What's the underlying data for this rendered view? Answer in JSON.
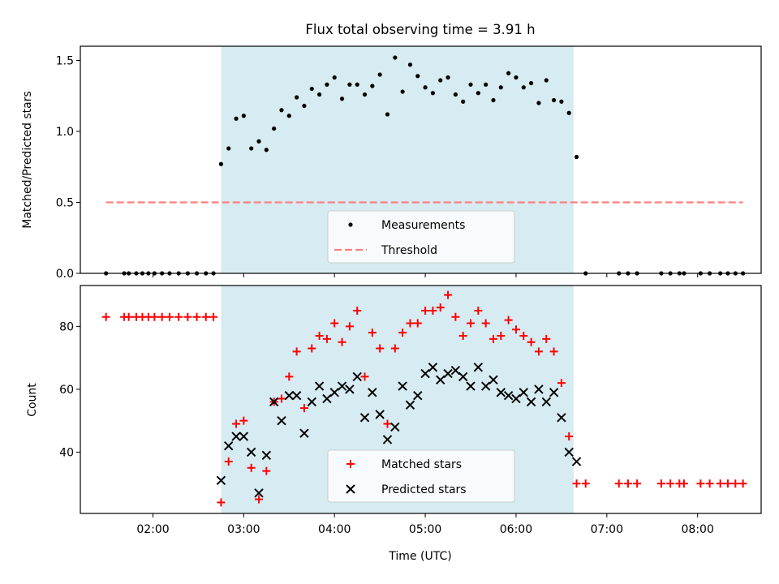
{
  "chart_data": [
    {
      "type": "scatter",
      "title": "Flux total observing time = 3.91 h",
      "xlabel": "",
      "ylabel": "Matched/Predicted stars",
      "xlim": [
        "01:12",
        "08:42"
      ],
      "ylim": [
        0,
        1.6
      ],
      "y_ticks": [
        "0.0",
        "0.5",
        "1.0",
        "1.5"
      ],
      "x_tick_values": [
        "02:00",
        "03:00",
        "04:00",
        "05:00",
        "06:00",
        "07:00",
        "08:00"
      ],
      "shaded_region": {
        "x": [
          "02:45",
          "06:38"
        ],
        "color": "#add8e6",
        "alpha": 0.5
      },
      "grid": false,
      "legend": {
        "position": "lower center",
        "entries": [
          "Measurements",
          "Threshold"
        ]
      },
      "series": [
        {
          "name": "Measurements",
          "marker": "dot",
          "color": "#000000",
          "points": [
            [
              "01:29",
              0
            ],
            [
              "01:41",
              0
            ],
            [
              "01:44",
              0
            ],
            [
              "01:49",
              0
            ],
            [
              "01:53",
              0
            ],
            [
              "01:57",
              0
            ],
            [
              "02:01",
              0
            ],
            [
              "02:06",
              0
            ],
            [
              "02:11",
              0
            ],
            [
              "02:17",
              0
            ],
            [
              "02:23",
              0
            ],
            [
              "02:29",
              0
            ],
            [
              "02:35",
              0
            ],
            [
              "02:40",
              0
            ],
            [
              "02:45",
              0.77
            ],
            [
              "02:50",
              0.88
            ],
            [
              "02:55",
              1.09
            ],
            [
              "03:00",
              1.11
            ],
            [
              "03:05",
              0.88
            ],
            [
              "03:10",
              0.93
            ],
            [
              "03:15",
              0.87
            ],
            [
              "03:20",
              1.02
            ],
            [
              "03:25",
              1.15
            ],
            [
              "03:30",
              1.11
            ],
            [
              "03:35",
              1.24
            ],
            [
              "03:40",
              1.18
            ],
            [
              "03:45",
              1.3
            ],
            [
              "03:50",
              1.26
            ],
            [
              "03:55",
              1.33
            ],
            [
              "04:00",
              1.38
            ],
            [
              "04:05",
              1.23
            ],
            [
              "04:10",
              1.33
            ],
            [
              "04:15",
              1.33
            ],
            [
              "04:20",
              1.26
            ],
            [
              "04:25",
              1.32
            ],
            [
              "04:30",
              1.4
            ],
            [
              "04:35",
              1.12
            ],
            [
              "04:40",
              1.52
            ],
            [
              "04:45",
              1.28
            ],
            [
              "04:50",
              1.47
            ],
            [
              "04:55",
              1.39
            ],
            [
              "05:00",
              1.31
            ],
            [
              "05:05",
              1.27
            ],
            [
              "05:10",
              1.36
            ],
            [
              "05:15",
              1.38
            ],
            [
              "05:20",
              1.26
            ],
            [
              "05:25",
              1.21
            ],
            [
              "05:30",
              1.33
            ],
            [
              "05:35",
              1.27
            ],
            [
              "05:40",
              1.33
            ],
            [
              "05:45",
              1.22
            ],
            [
              "05:50",
              1.31
            ],
            [
              "05:55",
              1.41
            ],
            [
              "06:00",
              1.38
            ],
            [
              "06:05",
              1.31
            ],
            [
              "06:10",
              1.34
            ],
            [
              "06:15",
              1.2
            ],
            [
              "06:20",
              1.36
            ],
            [
              "06:25",
              1.22
            ],
            [
              "06:30",
              1.21
            ],
            [
              "06:35",
              1.13
            ],
            [
              "06:40",
              0.82
            ],
            [
              "06:46",
              0
            ],
            [
              "07:08",
              0
            ],
            [
              "07:14",
              0
            ],
            [
              "07:20",
              0
            ],
            [
              "07:36",
              0
            ],
            [
              "07:42",
              0
            ],
            [
              "07:48",
              0
            ],
            [
              "07:51",
              0
            ],
            [
              "08:02",
              0
            ],
            [
              "08:08",
              0
            ],
            [
              "08:15",
              0
            ],
            [
              "08:20",
              0
            ],
            [
              "08:25",
              0
            ],
            [
              "08:30",
              0
            ]
          ]
        },
        {
          "name": "Threshold",
          "marker": "dashed-line",
          "color": "#ff7f7f",
          "points": [
            [
              "01:29",
              0.5
            ],
            [
              "08:30",
              0.5
            ]
          ]
        }
      ]
    },
    {
      "type": "scatter",
      "title": "",
      "xlabel": "Time (UTC)",
      "ylabel": "Count",
      "xlim": [
        "01:12",
        "08:42"
      ],
      "ylim": [
        20.5,
        93
      ],
      "y_ticks": [
        "40",
        "60",
        "80"
      ],
      "x_ticks": [
        "02:00",
        "03:00",
        "04:00",
        "05:00",
        "06:00",
        "07:00",
        "08:00"
      ],
      "shaded_region": {
        "x": [
          "02:45",
          "06:38"
        ],
        "color": "#add8e6",
        "alpha": 0.5
      },
      "grid": false,
      "legend": {
        "position": "lower center",
        "entries": [
          "Matched stars",
          "Predicted stars"
        ]
      },
      "series": [
        {
          "name": "Matched stars",
          "marker": "plus",
          "color": "#ff0000",
          "points": [
            [
              "01:29",
              83
            ],
            [
              "01:41",
              83
            ],
            [
              "01:44",
              83
            ],
            [
              "01:49",
              83
            ],
            [
              "01:53",
              83
            ],
            [
              "01:57",
              83
            ],
            [
              "02:01",
              83
            ],
            [
              "02:06",
              83
            ],
            [
              "02:11",
              83
            ],
            [
              "02:17",
              83
            ],
            [
              "02:23",
              83
            ],
            [
              "02:29",
              83
            ],
            [
              "02:35",
              83
            ],
            [
              "02:40",
              83
            ],
            [
              "02:45",
              24
            ],
            [
              "02:50",
              37
            ],
            [
              "02:55",
              49
            ],
            [
              "03:00",
              50
            ],
            [
              "03:05",
              35
            ],
            [
              "03:10",
              25
            ],
            [
              "03:15",
              34
            ],
            [
              "03:20",
              56
            ],
            [
              "03:25",
              57
            ],
            [
              "03:30",
              64
            ],
            [
              "03:35",
              72
            ],
            [
              "03:40",
              54
            ],
            [
              "03:45",
              73
            ],
            [
              "03:50",
              77
            ],
            [
              "03:55",
              76
            ],
            [
              "04:00",
              81
            ],
            [
              "04:05",
              75
            ],
            [
              "04:10",
              80
            ],
            [
              "04:15",
              85
            ],
            [
              "04:20",
              64
            ],
            [
              "04:25",
              78
            ],
            [
              "04:30",
              73
            ],
            [
              "04:35",
              49
            ],
            [
              "04:40",
              73
            ],
            [
              "04:45",
              78
            ],
            [
              "04:50",
              81
            ],
            [
              "04:55",
              81
            ],
            [
              "05:00",
              85
            ],
            [
              "05:05",
              85
            ],
            [
              "05:10",
              86
            ],
            [
              "05:15",
              90
            ],
            [
              "05:20",
              83
            ],
            [
              "05:25",
              77
            ],
            [
              "05:30",
              81
            ],
            [
              "05:35",
              85
            ],
            [
              "05:40",
              81
            ],
            [
              "05:45",
              76
            ],
            [
              "05:50",
              77
            ],
            [
              "05:55",
              82
            ],
            [
              "06:00",
              79
            ],
            [
              "06:05",
              77
            ],
            [
              "06:10",
              75
            ],
            [
              "06:15",
              72
            ],
            [
              "06:20",
              76
            ],
            [
              "06:25",
              72
            ],
            [
              "06:30",
              62
            ],
            [
              "06:35",
              45
            ],
            [
              "06:40",
              30
            ],
            [
              "06:46",
              30
            ],
            [
              "07:08",
              30
            ],
            [
              "07:14",
              30
            ],
            [
              "07:20",
              30
            ],
            [
              "07:36",
              30
            ],
            [
              "07:42",
              30
            ],
            [
              "07:48",
              30
            ],
            [
              "07:51",
              30
            ],
            [
              "08:02",
              30
            ],
            [
              "08:08",
              30
            ],
            [
              "08:15",
              30
            ],
            [
              "08:20",
              30
            ],
            [
              "08:25",
              30
            ],
            [
              "08:30",
              30
            ]
          ]
        },
        {
          "name": "Predicted stars",
          "marker": "x",
          "color": "#000000",
          "points": [
            [
              "02:45",
              31
            ],
            [
              "02:50",
              42
            ],
            [
              "02:55",
              45
            ],
            [
              "03:00",
              45
            ],
            [
              "03:05",
              40
            ],
            [
              "03:10",
              27
            ],
            [
              "03:15",
              39
            ],
            [
              "03:20",
              56
            ],
            [
              "03:25",
              50
            ],
            [
              "03:30",
              58
            ],
            [
              "03:35",
              58
            ],
            [
              "03:40",
              46
            ],
            [
              "03:45",
              56
            ],
            [
              "03:50",
              61
            ],
            [
              "03:55",
              57
            ],
            [
              "04:00",
              59
            ],
            [
              "04:05",
              61
            ],
            [
              "04:10",
              60
            ],
            [
              "04:15",
              64
            ],
            [
              "04:20",
              51
            ],
            [
              "04:25",
              59
            ],
            [
              "04:30",
              52
            ],
            [
              "04:35",
              44
            ],
            [
              "04:40",
              48
            ],
            [
              "04:45",
              61
            ],
            [
              "04:50",
              55
            ],
            [
              "04:55",
              58
            ],
            [
              "05:00",
              65
            ],
            [
              "05:05",
              67
            ],
            [
              "05:10",
              63
            ],
            [
              "05:15",
              65
            ],
            [
              "05:20",
              66
            ],
            [
              "05:25",
              64
            ],
            [
              "05:30",
              61
            ],
            [
              "05:35",
              67
            ],
            [
              "05:40",
              61
            ],
            [
              "05:45",
              63
            ],
            [
              "05:50",
              59
            ],
            [
              "05:55",
              58
            ],
            [
              "06:00",
              57
            ],
            [
              "06:05",
              59
            ],
            [
              "06:10",
              56
            ],
            [
              "06:15",
              60
            ],
            [
              "06:20",
              56
            ],
            [
              "06:25",
              59
            ],
            [
              "06:30",
              51
            ],
            [
              "06:35",
              40
            ],
            [
              "06:40",
              37
            ]
          ]
        }
      ]
    }
  ]
}
